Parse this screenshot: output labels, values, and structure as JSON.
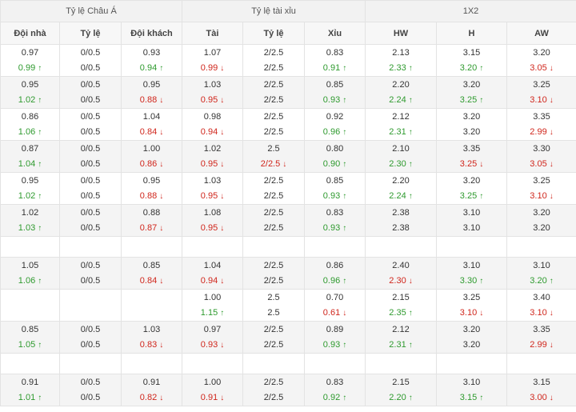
{
  "header": {
    "groups": [
      "Tỷ lệ Châu Á",
      "Tỷ lệ tài xỉu",
      "1X2"
    ],
    "columns": [
      "Đội nhà",
      "Tỷ lệ",
      "Đội khách",
      "Tài",
      "Tỷ lệ",
      "Xỉu",
      "HW",
      "H",
      "AW"
    ]
  },
  "rows": [
    [
      [
        {
          "v": "0.97",
          "d": ""
        },
        {
          "v": "0.99",
          "d": "up"
        }
      ],
      [
        {
          "v": "0/0.5",
          "d": ""
        },
        {
          "v": "0/0.5",
          "d": ""
        }
      ],
      [
        {
          "v": "0.93",
          "d": ""
        },
        {
          "v": "0.94",
          "d": "up"
        }
      ],
      [
        {
          "v": "1.07",
          "d": ""
        },
        {
          "v": "0.99",
          "d": "down"
        }
      ],
      [
        {
          "v": "2/2.5",
          "d": ""
        },
        {
          "v": "2/2.5",
          "d": ""
        }
      ],
      [
        {
          "v": "0.83",
          "d": ""
        },
        {
          "v": "0.91",
          "d": "up"
        }
      ],
      [
        {
          "v": "2.13",
          "d": ""
        },
        {
          "v": "2.33",
          "d": "up"
        }
      ],
      [
        {
          "v": "3.15",
          "d": ""
        },
        {
          "v": "3.20",
          "d": "up"
        }
      ],
      [
        {
          "v": "3.20",
          "d": ""
        },
        {
          "v": "3.05",
          "d": "down"
        }
      ]
    ],
    [
      [
        {
          "v": "0.95",
          "d": ""
        },
        {
          "v": "1.02",
          "d": "up"
        }
      ],
      [
        {
          "v": "0/0.5",
          "d": ""
        },
        {
          "v": "0/0.5",
          "d": ""
        }
      ],
      [
        {
          "v": "0.95",
          "d": ""
        },
        {
          "v": "0.88",
          "d": "down"
        }
      ],
      [
        {
          "v": "1.03",
          "d": ""
        },
        {
          "v": "0.95",
          "d": "down"
        }
      ],
      [
        {
          "v": "2/2.5",
          "d": ""
        },
        {
          "v": "2/2.5",
          "d": ""
        }
      ],
      [
        {
          "v": "0.85",
          "d": ""
        },
        {
          "v": "0.93",
          "d": "up"
        }
      ],
      [
        {
          "v": "2.20",
          "d": ""
        },
        {
          "v": "2.24",
          "d": "up"
        }
      ],
      [
        {
          "v": "3.20",
          "d": ""
        },
        {
          "v": "3.25",
          "d": "up"
        }
      ],
      [
        {
          "v": "3.25",
          "d": ""
        },
        {
          "v": "3.10",
          "d": "down"
        }
      ]
    ],
    [
      [
        {
          "v": "0.86",
          "d": ""
        },
        {
          "v": "1.06",
          "d": "up"
        }
      ],
      [
        {
          "v": "0/0.5",
          "d": ""
        },
        {
          "v": "0/0.5",
          "d": ""
        }
      ],
      [
        {
          "v": "1.04",
          "d": ""
        },
        {
          "v": "0.84",
          "d": "down"
        }
      ],
      [
        {
          "v": "0.98",
          "d": ""
        },
        {
          "v": "0.94",
          "d": "down"
        }
      ],
      [
        {
          "v": "2/2.5",
          "d": ""
        },
        {
          "v": "2/2.5",
          "d": ""
        }
      ],
      [
        {
          "v": "0.92",
          "d": ""
        },
        {
          "v": "0.96",
          "d": "up"
        }
      ],
      [
        {
          "v": "2.12",
          "d": ""
        },
        {
          "v": "2.31",
          "d": "up"
        }
      ],
      [
        {
          "v": "3.20",
          "d": ""
        },
        {
          "v": "3.20",
          "d": ""
        }
      ],
      [
        {
          "v": "3.35",
          "d": ""
        },
        {
          "v": "2.99",
          "d": "down"
        }
      ]
    ],
    [
      [
        {
          "v": "0.87",
          "d": ""
        },
        {
          "v": "1.04",
          "d": "up"
        }
      ],
      [
        {
          "v": "0/0.5",
          "d": ""
        },
        {
          "v": "0/0.5",
          "d": ""
        }
      ],
      [
        {
          "v": "1.00",
          "d": ""
        },
        {
          "v": "0.86",
          "d": "down"
        }
      ],
      [
        {
          "v": "1.02",
          "d": ""
        },
        {
          "v": "0.95",
          "d": "down"
        }
      ],
      [
        {
          "v": "2.5",
          "d": ""
        },
        {
          "v": "2/2.5",
          "d": "down"
        }
      ],
      [
        {
          "v": "0.80",
          "d": ""
        },
        {
          "v": "0.90",
          "d": "up"
        }
      ],
      [
        {
          "v": "2.10",
          "d": ""
        },
        {
          "v": "2.30",
          "d": "up"
        }
      ],
      [
        {
          "v": "3.35",
          "d": ""
        },
        {
          "v": "3.25",
          "d": "down"
        }
      ],
      [
        {
          "v": "3.30",
          "d": ""
        },
        {
          "v": "3.05",
          "d": "down"
        }
      ]
    ],
    [
      [
        {
          "v": "0.95",
          "d": ""
        },
        {
          "v": "1.02",
          "d": "up"
        }
      ],
      [
        {
          "v": "0/0.5",
          "d": ""
        },
        {
          "v": "0/0.5",
          "d": ""
        }
      ],
      [
        {
          "v": "0.95",
          "d": ""
        },
        {
          "v": "0.88",
          "d": "down"
        }
      ],
      [
        {
          "v": "1.03",
          "d": ""
        },
        {
          "v": "0.95",
          "d": "down"
        }
      ],
      [
        {
          "v": "2/2.5",
          "d": ""
        },
        {
          "v": "2/2.5",
          "d": ""
        }
      ],
      [
        {
          "v": "0.85",
          "d": ""
        },
        {
          "v": "0.93",
          "d": "up"
        }
      ],
      [
        {
          "v": "2.20",
          "d": ""
        },
        {
          "v": "2.24",
          "d": "up"
        }
      ],
      [
        {
          "v": "3.20",
          "d": ""
        },
        {
          "v": "3.25",
          "d": "up"
        }
      ],
      [
        {
          "v": "3.25",
          "d": ""
        },
        {
          "v": "3.10",
          "d": "down"
        }
      ]
    ],
    [
      [
        {
          "v": "1.02",
          "d": ""
        },
        {
          "v": "1.03",
          "d": "up"
        }
      ],
      [
        {
          "v": "0/0.5",
          "d": ""
        },
        {
          "v": "0/0.5",
          "d": ""
        }
      ],
      [
        {
          "v": "0.88",
          "d": ""
        },
        {
          "v": "0.87",
          "d": "down"
        }
      ],
      [
        {
          "v": "1.08",
          "d": ""
        },
        {
          "v": "0.95",
          "d": "down"
        }
      ],
      [
        {
          "v": "2/2.5",
          "d": ""
        },
        {
          "v": "2/2.5",
          "d": ""
        }
      ],
      [
        {
          "v": "0.83",
          "d": ""
        },
        {
          "v": "0.93",
          "d": "up"
        }
      ],
      [
        {
          "v": "2.38",
          "d": ""
        },
        {
          "v": "2.38",
          "d": ""
        }
      ],
      [
        {
          "v": "3.10",
          "d": ""
        },
        {
          "v": "3.10",
          "d": ""
        }
      ],
      [
        {
          "v": "3.20",
          "d": ""
        },
        {
          "v": "3.20",
          "d": ""
        }
      ]
    ],
    [
      [],
      [],
      [],
      [],
      [],
      [],
      [],
      [],
      []
    ],
    [
      [
        {
          "v": "1.05",
          "d": ""
        },
        {
          "v": "1.06",
          "d": "up"
        }
      ],
      [
        {
          "v": "0/0.5",
          "d": ""
        },
        {
          "v": "0/0.5",
          "d": ""
        }
      ],
      [
        {
          "v": "0.85",
          "d": ""
        },
        {
          "v": "0.84",
          "d": "down"
        }
      ],
      [
        {
          "v": "1.04",
          "d": ""
        },
        {
          "v": "0.94",
          "d": "down"
        }
      ],
      [
        {
          "v": "2/2.5",
          "d": ""
        },
        {
          "v": "2/2.5",
          "d": ""
        }
      ],
      [
        {
          "v": "0.86",
          "d": ""
        },
        {
          "v": "0.96",
          "d": "up"
        }
      ],
      [
        {
          "v": "2.40",
          "d": ""
        },
        {
          "v": "2.30",
          "d": "down"
        }
      ],
      [
        {
          "v": "3.10",
          "d": ""
        },
        {
          "v": "3.30",
          "d": "up"
        }
      ],
      [
        {
          "v": "3.10",
          "d": ""
        },
        {
          "v": "3.20",
          "d": "up"
        }
      ]
    ],
    [
      [],
      [],
      [],
      [
        {
          "v": "1.00",
          "d": ""
        },
        {
          "v": "1.15",
          "d": "up"
        }
      ],
      [
        {
          "v": "2.5",
          "d": ""
        },
        {
          "v": "2.5",
          "d": ""
        }
      ],
      [
        {
          "v": "0.70",
          "d": ""
        },
        {
          "v": "0.61",
          "d": "down"
        }
      ],
      [
        {
          "v": "2.15",
          "d": ""
        },
        {
          "v": "2.35",
          "d": "up"
        }
      ],
      [
        {
          "v": "3.25",
          "d": ""
        },
        {
          "v": "3.10",
          "d": "down"
        }
      ],
      [
        {
          "v": "3.40",
          "d": ""
        },
        {
          "v": "3.10",
          "d": "down"
        }
      ]
    ],
    [
      [
        {
          "v": "0.85",
          "d": ""
        },
        {
          "v": "1.05",
          "d": "up"
        }
      ],
      [
        {
          "v": "0/0.5",
          "d": ""
        },
        {
          "v": "0/0.5",
          "d": ""
        }
      ],
      [
        {
          "v": "1.03",
          "d": ""
        },
        {
          "v": "0.83",
          "d": "down"
        }
      ],
      [
        {
          "v": "0.97",
          "d": ""
        },
        {
          "v": "0.93",
          "d": "down"
        }
      ],
      [
        {
          "v": "2/2.5",
          "d": ""
        },
        {
          "v": "2/2.5",
          "d": ""
        }
      ],
      [
        {
          "v": "0.89",
          "d": ""
        },
        {
          "v": "0.93",
          "d": "up"
        }
      ],
      [
        {
          "v": "2.12",
          "d": ""
        },
        {
          "v": "2.31",
          "d": "up"
        }
      ],
      [
        {
          "v": "3.20",
          "d": ""
        },
        {
          "v": "3.20",
          "d": ""
        }
      ],
      [
        {
          "v": "3.35",
          "d": ""
        },
        {
          "v": "2.99",
          "d": "down"
        }
      ]
    ],
    [
      [],
      [],
      [],
      [],
      [],
      [],
      [],
      [],
      []
    ],
    [
      [
        {
          "v": "0.91",
          "d": ""
        },
        {
          "v": "1.01",
          "d": "up"
        }
      ],
      [
        {
          "v": "0/0.5",
          "d": ""
        },
        {
          "v": "0/0.5",
          "d": ""
        }
      ],
      [
        {
          "v": "0.91",
          "d": ""
        },
        {
          "v": "0.82",
          "d": "down"
        }
      ],
      [
        {
          "v": "1.00",
          "d": ""
        },
        {
          "v": "0.91",
          "d": "down"
        }
      ],
      [
        {
          "v": "2/2.5",
          "d": ""
        },
        {
          "v": "2/2.5",
          "d": ""
        }
      ],
      [
        {
          "v": "0.83",
          "d": ""
        },
        {
          "v": "0.92",
          "d": "up"
        }
      ],
      [
        {
          "v": "2.15",
          "d": ""
        },
        {
          "v": "2.20",
          "d": "up"
        }
      ],
      [
        {
          "v": "3.10",
          "d": ""
        },
        {
          "v": "3.15",
          "d": "up"
        }
      ],
      [
        {
          "v": "3.15",
          "d": ""
        },
        {
          "v": "3.00",
          "d": "down"
        }
      ]
    ]
  ],
  "colors": {
    "up": "#2e9a2e",
    "down": "#d0261c",
    "header_bg": "#f2f2f2",
    "alt_row_bg": "#f4f4f4",
    "border": "#e3e3e3"
  },
  "icons": {
    "up": "arrow-up-icon",
    "down": "arrow-down-icon"
  }
}
